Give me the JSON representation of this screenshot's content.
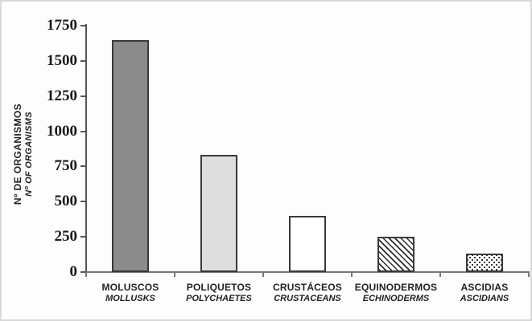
{
  "chart_data": {
    "type": "bar",
    "title": "",
    "ylabel_primary": "Nº DE ORGANISMOS",
    "ylabel_secondary": "Nº OF ORGANISMS",
    "xlabel": "",
    "ylim": [
      0,
      1750
    ],
    "ytick_step": 250,
    "yticks": [
      0,
      250,
      500,
      750,
      1000,
      1250,
      1500,
      1750
    ],
    "grid": false,
    "legend": "none",
    "categories": [
      {
        "label_es": "MOLUSCOS",
        "label_en": "MOLLUSKS",
        "value": 1650,
        "fill": "dark-gray",
        "fill_color": "#8b8b8b"
      },
      {
        "label_es": "POLIQUETOS",
        "label_en": "POLYCHAETES",
        "value": 830,
        "fill": "light-gray",
        "fill_color": "#dedede"
      },
      {
        "label_es": "CRUSTÁCEOS",
        "label_en": "CRUSTACEANS",
        "value": 400,
        "fill": "white",
        "fill_color": "#ffffff"
      },
      {
        "label_es": "EQUINODERMOS",
        "label_en": "ECHINODERMS",
        "value": 250,
        "fill": "diagonal-hatch",
        "fill_color": "#ffffff"
      },
      {
        "label_es": "ASCIDIAS",
        "label_en": "ASCIDIANS",
        "value": 130,
        "fill": "dotted",
        "fill_color": "#ffffff"
      }
    ],
    "colors": {
      "axis": "#555555",
      "bar_border": "#3a3a3a",
      "text": "#1a1a1a",
      "frame_border": "#d9d9d9",
      "pattern_ink": "#2b2b2b"
    }
  }
}
